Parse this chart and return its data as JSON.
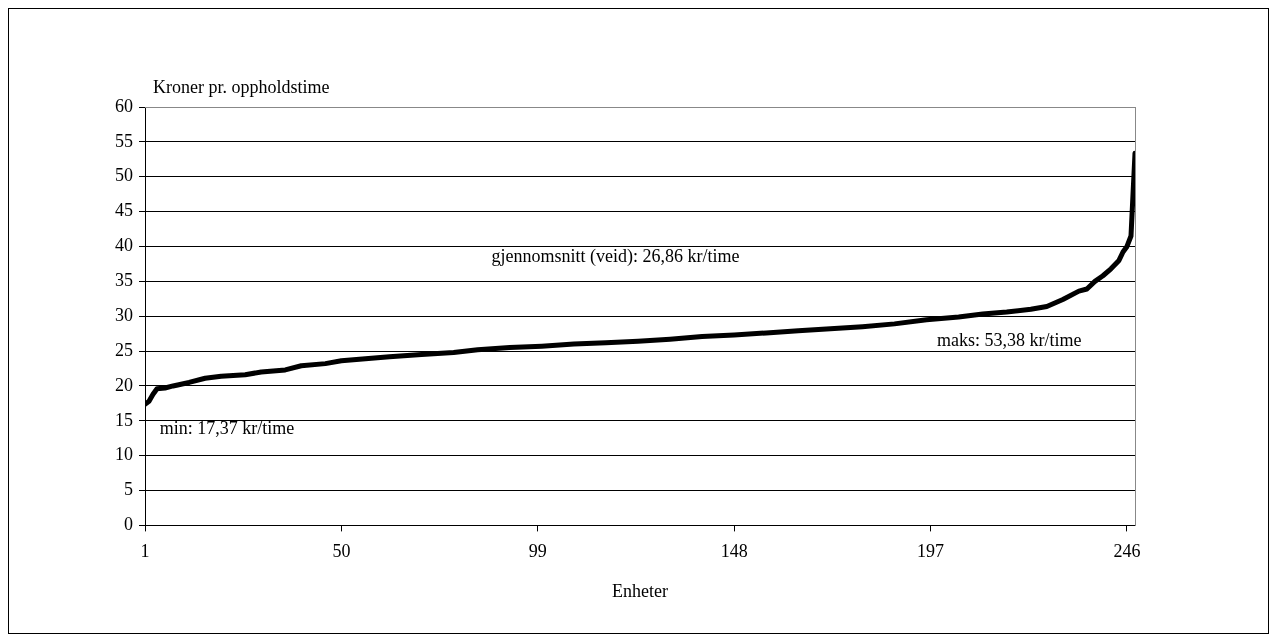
{
  "chart_data": {
    "type": "line",
    "ylabel": "Kroner pr. oppholdstime",
    "xlabel": "Enheter",
    "annotations": [
      "gjennomsnitt (veid): 26,86 kr/time",
      "maks: 53,38 kr/time",
      "min: 17,37 kr/time"
    ],
    "series": [
      {
        "color": "#000000",
        "x": [
          1,
          2,
          3,
          4,
          6,
          8,
          12,
          16,
          20,
          26,
          30,
          36,
          40,
          46,
          50,
          56,
          62,
          70,
          78,
          84,
          92,
          100,
          108,
          116,
          124,
          132,
          140,
          148,
          156,
          164,
          172,
          180,
          188,
          196,
          204,
          210,
          216,
          222,
          226,
          230,
          234,
          236,
          238,
          240,
          242,
          244,
          245,
          246,
          247,
          248
        ],
        "values": [
          17.37,
          17.8,
          18.8,
          19.6,
          19.7,
          20.0,
          20.5,
          21.1,
          21.4,
          21.6,
          22.0,
          22.3,
          22.9,
          23.2,
          23.6,
          23.9,
          24.2,
          24.5,
          24.8,
          25.2,
          25.5,
          25.7,
          26.0,
          26.2,
          26.4,
          26.7,
          27.1,
          27.3,
          27.6,
          27.9,
          28.2,
          28.5,
          28.9,
          29.5,
          29.9,
          30.3,
          30.6,
          31.0,
          31.4,
          32.4,
          33.6,
          33.9,
          35.0,
          35.8,
          36.8,
          38.0,
          39.2,
          40.0,
          41.5,
          53.38
        ]
      }
    ],
    "xlim": [
      1,
      248
    ],
    "xticks": [
      1,
      50,
      99,
      148,
      197,
      246
    ],
    "ylim": [
      0,
      60
    ],
    "yticks": [
      0,
      5,
      10,
      15,
      20,
      25,
      30,
      35,
      40,
      45,
      50,
      55,
      60
    ],
    "grid": "y",
    "legend": false,
    "marker": "none",
    "line_style": "solid"
  }
}
